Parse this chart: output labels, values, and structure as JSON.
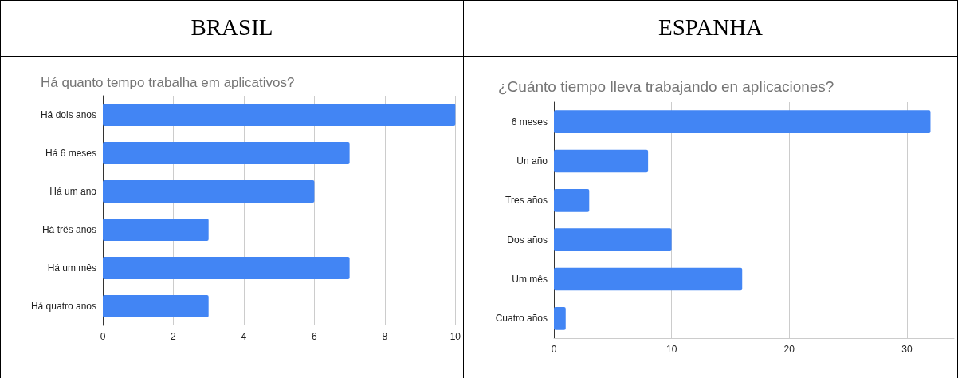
{
  "chart_data": [
    {
      "type": "bar",
      "orientation": "horizontal",
      "title": "BRASIL",
      "subtitle": "Há quanto tempo trabalha em aplicativos?",
      "categories": [
        "Há dois anos",
        "Há 6 meses",
        "Há um ano",
        "Há três anos",
        "Há um mês",
        "Há quatro anos"
      ],
      "values": [
        10,
        7,
        6,
        3,
        7,
        3
      ],
      "color": "#4285f4",
      "xlim": [
        0,
        10
      ],
      "xticks": [
        0,
        2,
        4,
        6,
        8,
        10
      ],
      "grid": "x"
    },
    {
      "type": "bar",
      "orientation": "horizontal",
      "title": "ESPANHA",
      "subtitle": "¿Cuánto tiempo lleva trabajando en aplicaciones?",
      "categories": [
        "6 meses",
        "Un año",
        "Tres años",
        "Dos años",
        "Um mês",
        "Cuatro años"
      ],
      "values": [
        32,
        8,
        3,
        10,
        16,
        1
      ],
      "color": "#4285f4",
      "xlim": [
        0,
        34
      ],
      "xticks": [
        0,
        10,
        20,
        30
      ],
      "grid": "x"
    }
  ]
}
